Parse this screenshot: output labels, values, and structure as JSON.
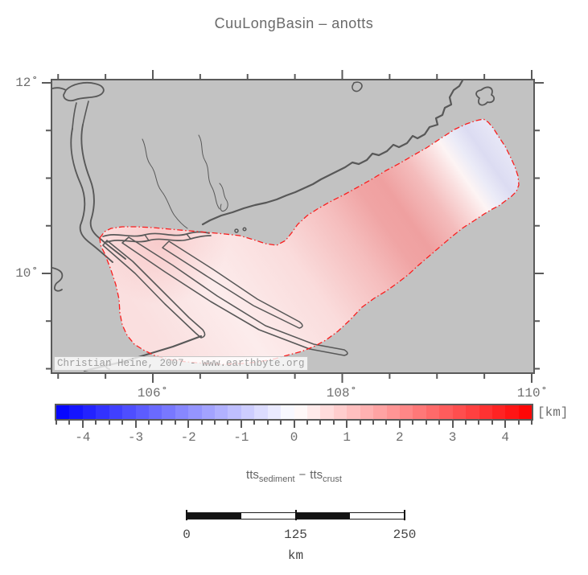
{
  "title": "CuuLongBasin – anotts",
  "map": {
    "lat_labels": [
      "12˚",
      "10˚"
    ],
    "lon_labels": [
      "106˚",
      "108˚",
      "110˚"
    ],
    "lat_ticks": {
      "values": [
        12,
        11.5,
        11,
        10.5,
        10,
        9.5,
        9
      ],
      "labeled": [
        12,
        10
      ]
    },
    "lon_ticks": {
      "values": [
        105,
        105.5,
        106,
        106.5,
        107,
        107.5,
        108,
        108.5,
        109,
        109.5,
        110
      ],
      "labeled": [
        106,
        108,
        110
      ]
    },
    "watermark": "Christian Heine, 2007 - www.earthbyte.org"
  },
  "colorbar": {
    "min": -4.5,
    "max": 4.5,
    "step": 0.25,
    "labeled_ticks": [
      -4,
      -3,
      -2,
      -1,
      0,
      1,
      2,
      3,
      4
    ],
    "unit": "[km]",
    "negative_end_color": "#0202ff",
    "positive_end_color": "#ff0202"
  },
  "quantity_label": {
    "term1": "tts",
    "sub1": "sediment",
    "operator": "−",
    "term2": "tts",
    "sub2": "crust"
  },
  "scalebar": {
    "tick_labels": [
      "0",
      "125",
      "250"
    ],
    "unit": "km"
  },
  "colors": {
    "land": "#c2c2c2",
    "coastline": "#585858",
    "frame": "#5a5a5a",
    "basin_outline": "#fa1e1e",
    "label_text": "#6e6e6e"
  }
}
